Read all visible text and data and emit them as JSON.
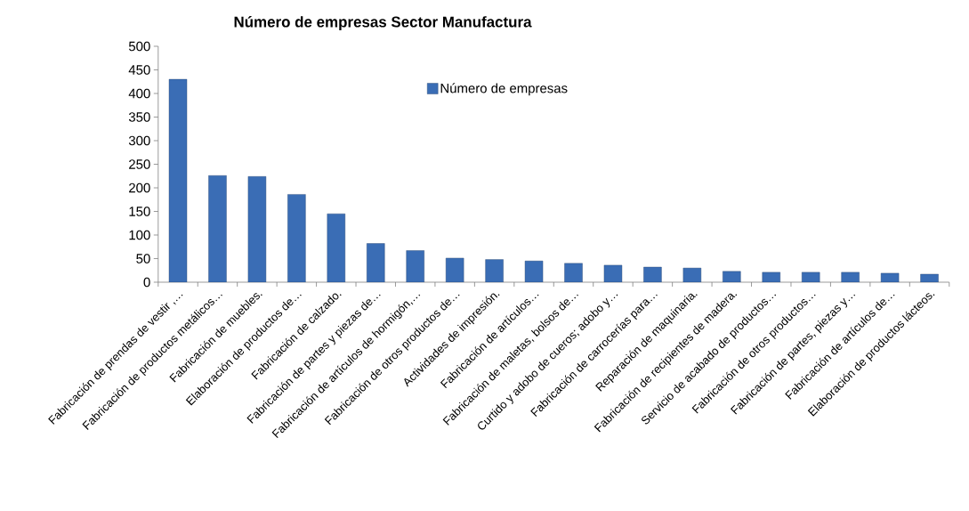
{
  "chart_data": {
    "type": "bar",
    "title": "Número de empresas Sector Manufactura",
    "categories": [
      "Fabricación de prendas de vestir ,…",
      "Fabricación de productos metálicos…",
      "Fabricación de muebles.",
      "Elaboración de productos de…",
      "Fabricación de calzado.",
      "Fabricación de partes y piezas de…",
      "Fabricación de artículos de hormigón,…",
      "Fabricación de otros productos de…",
      "Actividades de impresión.",
      "Fabricación de artículos…",
      "Fabricación de maletas, bolsos de…",
      "Curtido y adobo de cueros; adobo y…",
      "Fabricación de carrocerías para…",
      "Reparación de maquinaria.",
      "Fabricación de recipientes de madera.",
      "Servicio de acabado de productos…",
      "Fabricación de otros productos…",
      "Fabricación de partes, piezas y…",
      "Fabricación de artículos de…",
      "Elaboración de productos lácteos."
    ],
    "series": [
      {
        "name": "Número de empresas",
        "color": "#3a6db5",
        "values": [
          430,
          226,
          224,
          186,
          145,
          82,
          67,
          51,
          48,
          45,
          40,
          36,
          32,
          30,
          23,
          21,
          21,
          21,
          19,
          17
        ]
      }
    ],
    "ylim": [
      0,
      500
    ],
    "yticks": [
      0,
      50,
      100,
      150,
      200,
      250,
      300,
      350,
      400,
      450,
      500
    ],
    "grid": false,
    "legend": "top"
  }
}
